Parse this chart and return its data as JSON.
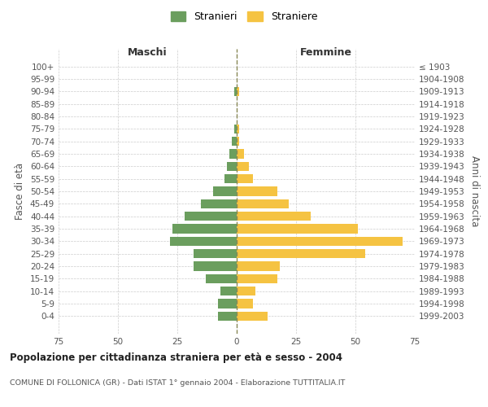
{
  "age_groups": [
    "100+",
    "95-99",
    "90-94",
    "85-89",
    "80-84",
    "75-79",
    "70-74",
    "65-69",
    "60-64",
    "55-59",
    "50-54",
    "45-49",
    "40-44",
    "35-39",
    "30-34",
    "25-29",
    "20-24",
    "15-19",
    "10-14",
    "5-9",
    "0-4"
  ],
  "birth_years": [
    "≤ 1903",
    "1904-1908",
    "1909-1913",
    "1914-1918",
    "1919-1923",
    "1924-1928",
    "1929-1933",
    "1934-1938",
    "1939-1943",
    "1944-1948",
    "1949-1953",
    "1954-1958",
    "1959-1963",
    "1964-1968",
    "1969-1973",
    "1974-1978",
    "1979-1983",
    "1984-1988",
    "1989-1993",
    "1994-1998",
    "1999-2003"
  ],
  "stranieri": [
    0,
    0,
    1,
    0,
    0,
    1,
    2,
    3,
    4,
    5,
    10,
    15,
    22,
    27,
    28,
    18,
    18,
    13,
    7,
    8,
    8
  ],
  "straniere": [
    0,
    0,
    1,
    0,
    0,
    1,
    1,
    3,
    5,
    7,
    17,
    22,
    31,
    51,
    70,
    54,
    18,
    17,
    8,
    7,
    13
  ],
  "male_color": "#6b9e5e",
  "female_color": "#f5c342",
  "grid_color": "#cccccc",
  "center_line_color": "#888855",
  "xlim": 75,
  "title": "Popolazione per cittadinanza straniera per età e sesso - 2004",
  "subtitle": "COMUNE DI FOLLONICA (GR) - Dati ISTAT 1° gennaio 2004 - Elaborazione TUTTITALIA.IT",
  "ylabel_left": "Fasce di età",
  "ylabel_right": "Anni di nascita",
  "xlabel_left": "Maschi",
  "xlabel_right": "Femmine",
  "legend_stranieri": "Stranieri",
  "legend_straniere": "Straniere"
}
